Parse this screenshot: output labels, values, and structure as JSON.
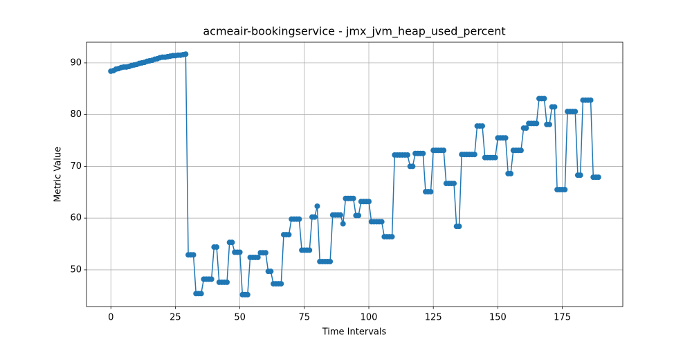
{
  "chart_data": {
    "type": "line",
    "title": "acmeair-bookingservice - jmx_jvm_heap_used_percent",
    "xlabel": "Time Intervals",
    "ylabel": "Metric Value",
    "color": "#1f77b4",
    "grid": true,
    "xlim": [
      -9.45,
      198.45
    ],
    "ylim": [
      42.9,
      94.0
    ],
    "xticks": [
      0,
      25,
      50,
      75,
      100,
      125,
      150,
      175
    ],
    "yticks": [
      50,
      60,
      70,
      80,
      90
    ],
    "x": [
      0,
      1,
      2,
      3,
      4,
      5,
      6,
      7,
      8,
      9,
      10,
      11,
      12,
      13,
      14,
      15,
      16,
      17,
      18,
      19,
      20,
      21,
      22,
      23,
      24,
      25,
      26,
      27,
      28,
      29,
      30,
      31,
      32,
      33,
      34,
      35,
      36,
      37,
      38,
      39,
      40,
      41,
      42,
      43,
      44,
      45,
      46,
      47,
      48,
      49,
      50,
      51,
      52,
      53,
      54,
      55,
      56,
      57,
      58,
      59,
      60,
      61,
      62,
      63,
      64,
      65,
      66,
      67,
      68,
      69,
      70,
      71,
      72,
      73,
      74,
      75,
      76,
      77,
      78,
      79,
      80,
      81,
      82,
      83,
      84,
      85,
      86,
      87,
      88,
      89,
      90,
      91,
      92,
      93,
      94,
      95,
      96,
      97,
      98,
      99,
      100,
      101,
      102,
      103,
      104,
      105,
      106,
      107,
      108,
      109,
      110,
      111,
      112,
      113,
      114,
      115,
      116,
      117,
      118,
      119,
      120,
      121,
      122,
      123,
      124,
      125,
      126,
      127,
      128,
      129,
      130,
      131,
      132,
      133,
      134,
      135,
      136,
      137,
      138,
      139,
      140,
      141,
      142,
      143,
      144,
      145,
      146,
      147,
      148,
      149,
      150,
      151,
      152,
      153,
      154,
      155,
      156,
      157,
      158,
      159,
      160,
      161,
      162,
      163,
      164,
      165,
      166,
      167,
      168,
      169,
      170,
      171,
      172,
      173,
      174,
      175,
      176,
      177,
      178,
      179,
      180,
      181,
      182,
      183,
      184,
      185,
      186,
      187,
      188,
      189
    ],
    "values": [
      88.4,
      88.5,
      88.8,
      88.9,
      89.1,
      89.2,
      89.2,
      89.3,
      89.5,
      89.6,
      89.7,
      89.9,
      90.0,
      90.1,
      90.3,
      90.4,
      90.5,
      90.7,
      90.8,
      91.0,
      91.1,
      91.1,
      91.2,
      91.3,
      91.4,
      91.4,
      91.5,
      91.5,
      91.6,
      91.7,
      52.9,
      52.9,
      52.9,
      45.4,
      45.4,
      45.4,
      48.2,
      48.2,
      48.2,
      48.2,
      54.4,
      54.4,
      47.6,
      47.6,
      47.6,
      47.6,
      55.3,
      55.3,
      53.4,
      53.4,
      53.4,
      45.2,
      45.2,
      45.2,
      52.4,
      52.4,
      52.4,
      52.4,
      53.3,
      53.3,
      53.3,
      49.7,
      49.7,
      47.3,
      47.3,
      47.3,
      47.3,
      56.8,
      56.8,
      56.8,
      59.8,
      59.8,
      59.8,
      59.8,
      53.8,
      53.8,
      53.8,
      53.8,
      60.2,
      60.2,
      62.3,
      51.6,
      51.6,
      51.6,
      51.6,
      51.6,
      60.6,
      60.6,
      60.6,
      60.6,
      58.9,
      63.8,
      63.8,
      63.8,
      63.8,
      60.5,
      60.5,
      63.2,
      63.2,
      63.2,
      63.2,
      59.3,
      59.3,
      59.3,
      59.3,
      59.3,
      56.4,
      56.4,
      56.4,
      56.4,
      72.2,
      72.2,
      72.2,
      72.2,
      72.2,
      72.2,
      70.0,
      70.0,
      72.5,
      72.5,
      72.5,
      72.5,
      65.1,
      65.1,
      65.1,
      73.1,
      73.1,
      73.1,
      73.1,
      73.1,
      66.7,
      66.7,
      66.7,
      66.7,
      58.4,
      58.4,
      72.3,
      72.3,
      72.3,
      72.3,
      72.3,
      72.3,
      77.8,
      77.8,
      77.8,
      71.7,
      71.7,
      71.7,
      71.7,
      71.7,
      75.5,
      75.5,
      75.5,
      75.5,
      68.6,
      68.6,
      73.1,
      73.1,
      73.1,
      73.1,
      77.4,
      77.4,
      78.3,
      78.3,
      78.3,
      78.3,
      83.1,
      83.1,
      83.1,
      78.1,
      78.1,
      81.5,
      81.5,
      65.5,
      65.5,
      65.5,
      65.5,
      80.6,
      80.6,
      80.6,
      80.6,
      68.3,
      68.3,
      82.8,
      82.8,
      82.8,
      82.8,
      67.9,
      67.9,
      67.9
    ]
  }
}
